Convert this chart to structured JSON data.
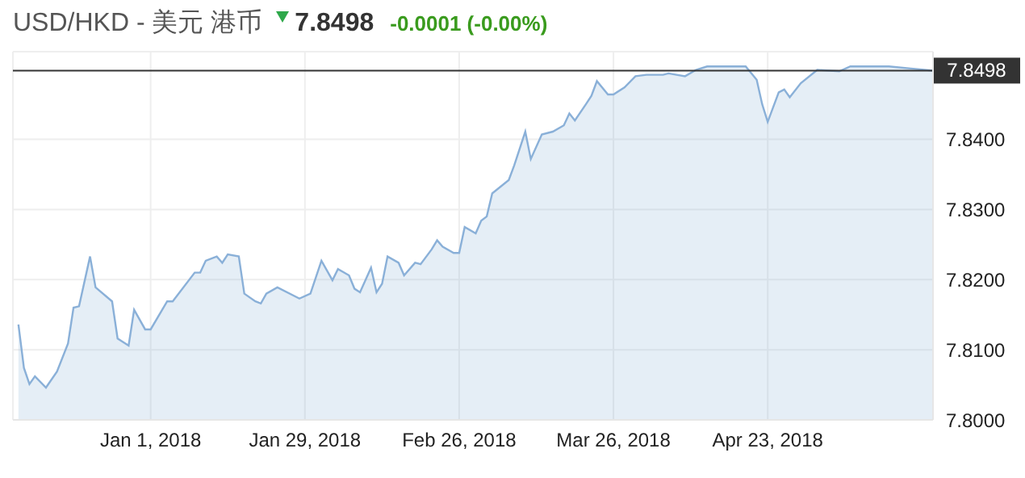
{
  "chart_data": {
    "type": "area",
    "title": "USD/HKD - 美元 港币",
    "annotations": [
      "7.8498",
      "-0.0001 (-0.00%)"
    ],
    "x": [
      "2017-12-08",
      "2017-12-09",
      "2017-12-10",
      "2017-12-11",
      "2017-12-13",
      "2017-12-15",
      "2017-12-17",
      "2017-12-18",
      "2017-12-19",
      "2017-12-21",
      "2017-12-22",
      "2017-12-25",
      "2017-12-26",
      "2017-12-28",
      "2017-12-29",
      "2017-12-31",
      "2018-01-01",
      "2018-01-04",
      "2018-01-05",
      "2018-01-09",
      "2018-01-10",
      "2018-01-11",
      "2018-01-13",
      "2018-01-14",
      "2018-01-15",
      "2018-01-17",
      "2018-01-18",
      "2018-01-20",
      "2018-01-21",
      "2018-01-22",
      "2018-01-24",
      "2018-01-28",
      "2018-01-30",
      "2018-02-01",
      "2018-02-03",
      "2018-02-04",
      "2018-02-06",
      "2018-02-07",
      "2018-02-08",
      "2018-02-10",
      "2018-02-11",
      "2018-02-12",
      "2018-02-13",
      "2018-02-15",
      "2018-02-16",
      "2018-02-18",
      "2018-02-19",
      "2018-02-21",
      "2018-02-22",
      "2018-02-23",
      "2018-02-25",
      "2018-02-26",
      "2018-02-27",
      "2018-03-01",
      "2018-03-02",
      "2018-03-03",
      "2018-03-04",
      "2018-03-07",
      "2018-03-08",
      "2018-03-10",
      "2018-03-11",
      "2018-03-13",
      "2018-03-15",
      "2018-03-17",
      "2018-03-18",
      "2018-03-19",
      "2018-03-21",
      "2018-03-22",
      "2018-03-23",
      "2018-03-25",
      "2018-03-26",
      "2018-03-28",
      "2018-03-30",
      "2018-04-01",
      "2018-04-04",
      "2018-04-05",
      "2018-04-08",
      "2018-04-10",
      "2018-04-12",
      "2018-04-16",
      "2018-04-19",
      "2018-04-21",
      "2018-04-22",
      "2018-04-23",
      "2018-04-25",
      "2018-04-26",
      "2018-04-27",
      "2018-04-29",
      "2018-05-02",
      "2018-05-06",
      "2018-05-08",
      "2018-05-11",
      "2018-05-15",
      "2018-05-19",
      "2018-05-23"
    ],
    "series": [
      {
        "color": "#8ab0d8",
        "values": [
          7.8136,
          7.8074,
          7.8051,
          7.8062,
          7.8046,
          7.8069,
          7.8109,
          7.816,
          7.8162,
          7.8233,
          7.8189,
          7.8169,
          7.8116,
          7.8106,
          7.8157,
          7.8129,
          7.8129,
          7.8169,
          7.8169,
          7.821,
          7.821,
          7.8227,
          7.8233,
          7.8224,
          7.8236,
          7.8233,
          7.818,
          7.8169,
          7.8166,
          7.818,
          7.8189,
          7.8173,
          7.818,
          7.8227,
          7.8199,
          7.8215,
          7.8206,
          7.8187,
          7.8182,
          7.8217,
          7.8182,
          7.8194,
          7.8233,
          7.8224,
          7.8206,
          7.8224,
          7.8222,
          7.8243,
          7.8256,
          7.8247,
          7.8238,
          7.8238,
          7.8275,
          7.8266,
          7.8284,
          7.829,
          7.8323,
          7.8342,
          7.8363,
          7.8411,
          7.8372,
          7.8407,
          7.8411,
          7.842,
          7.8437,
          7.8427,
          7.845,
          7.8462,
          7.8483,
          7.8464,
          7.8464,
          7.8474,
          7.849,
          7.8492,
          7.8492,
          7.8494,
          7.849,
          7.8499,
          7.8504,
          7.8504,
          7.8504,
          7.8485,
          7.845,
          7.8425,
          7.8467,
          7.8471,
          7.846,
          7.848,
          7.8499,
          7.8497,
          7.8504,
          7.8504,
          7.8504,
          7.8501,
          7.8498
        ]
      }
    ],
    "xlim": [
      "2017-12-07",
      "2018-05-23"
    ],
    "xticks": [
      {
        "value": "2018-01-01",
        "label": "Jan 1, 2018"
      },
      {
        "value": "2018-01-29",
        "label": "Jan 29, 2018"
      },
      {
        "value": "2018-02-26",
        "label": "Feb 26, 2018"
      },
      {
        "value": "2018-03-26",
        "label": "Mar 26, 2018"
      },
      {
        "value": "2018-04-23",
        "label": "Apr 23, 2018"
      }
    ],
    "ylim": [
      7.8,
      7.8525
    ],
    "yticks": [
      {
        "value": 7.8,
        "label": "7.8000"
      },
      {
        "value": 7.81,
        "label": "7.8100"
      },
      {
        "value": 7.82,
        "label": "7.8200"
      },
      {
        "value": 7.83,
        "label": "7.8300"
      },
      {
        "value": 7.84,
        "label": "7.8400"
      }
    ],
    "ref_lines": [
      {
        "axis": "y",
        "value": 7.8498,
        "label": "7.8498",
        "color": "#333333"
      }
    ],
    "grid": true
  }
}
